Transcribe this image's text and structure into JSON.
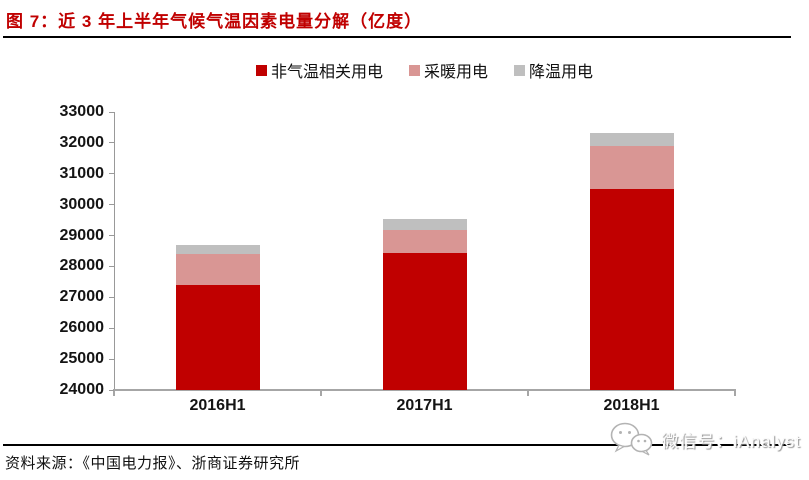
{
  "header": {
    "title": "图 7：近 3 年上半年气候气温因素电量分解（亿度）"
  },
  "colors": {
    "title_accent": "#C00000",
    "series_non_temp": "#C00000",
    "series_heating": "#D99694",
    "series_cooling": "#BFBFBF",
    "axis_line": "#A6A6A6",
    "divider": "#000000"
  },
  "chart_data": {
    "type": "bar",
    "stacked": true,
    "title": "近 3 年上半年气候气温因素电量分解（亿度）",
    "categories": [
      "2016H1",
      "2017H1",
      "2018H1"
    ],
    "series": [
      {
        "name": "非气温相关用电",
        "color": "#C00000",
        "values": [
          27400,
          28420,
          30500
        ]
      },
      {
        "name": "采暖用电",
        "color": "#D99694",
        "values": [
          1000,
          750,
          1390
        ]
      },
      {
        "name": "降温用电",
        "color": "#BFBFBF",
        "values": [
          300,
          380,
          440
        ]
      }
    ],
    "stack_totals": [
      28700,
      29550,
      32330
    ],
    "xlabel": "",
    "ylabel": "",
    "ylim": [
      24000,
      33000
    ],
    "ytick_step": 1000,
    "ytick_labels": [
      "24000",
      "25000",
      "26000",
      "27000",
      "28000",
      "29000",
      "30000",
      "31000",
      "32000",
      "33000"
    ],
    "grid": false,
    "legend_position": "top"
  },
  "footer": {
    "source": "资料来源：《中国电力报》、浙商证券研究所"
  },
  "watermark": {
    "icon": "wechat-icon",
    "text": "微信号：iAnalyst"
  }
}
